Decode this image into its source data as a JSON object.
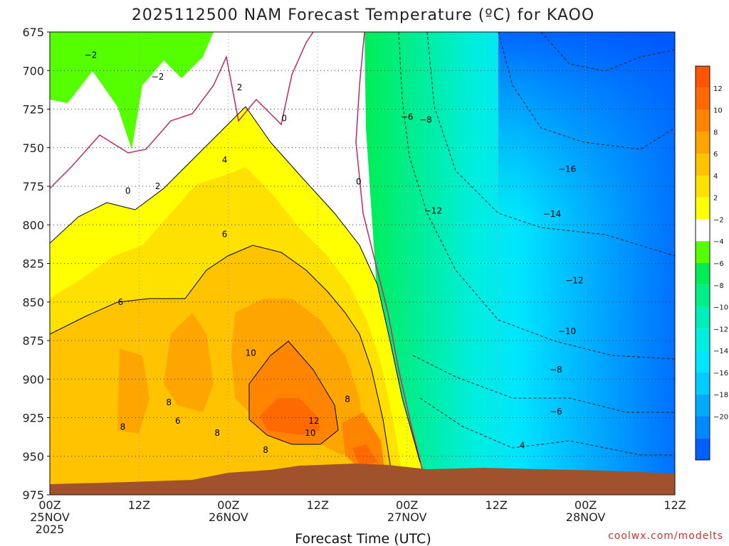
{
  "chart_data": {
    "type": "heatmap",
    "title": "2025112500 NAM Forecast Temperature (ºC) for KAOO",
    "xlabel": "Forecast Time (UTC)",
    "ylabel": "",
    "credit": "coolwx.com/modelts",
    "x_ticks": [
      {
        "hour": 0,
        "line1": "00Z",
        "line2": "25NOV",
        "line3": "2025"
      },
      {
        "hour": 12,
        "line1": "12Z"
      },
      {
        "hour": 24,
        "line1": "00Z",
        "line2": "26NOV"
      },
      {
        "hour": 36,
        "line1": "12Z"
      },
      {
        "hour": 48,
        "line1": "00Z",
        "line2": "27NOV"
      },
      {
        "hour": 60,
        "line1": "12Z"
      },
      {
        "hour": 72,
        "line1": "00Z",
        "line2": "28NOV"
      },
      {
        "hour": 84,
        "line1": "12Z"
      }
    ],
    "xlim": [
      0,
      84
    ],
    "y_ticks": [
      675,
      700,
      725,
      750,
      775,
      800,
      825,
      850,
      875,
      900,
      925,
      950,
      975
    ],
    "ylim": [
      675,
      975
    ],
    "contour_interval": 2,
    "colorbar": [
      {
        "value": "12",
        "color": "#ff6a00"
      },
      {
        "value": "10",
        "color": "#ff8500"
      },
      {
        "value": "8",
        "color": "#ffa500"
      },
      {
        "value": "6",
        "color": "#ffc300"
      },
      {
        "value": "4",
        "color": "#ffe100"
      },
      {
        "value": "2",
        "color": "#ffff00"
      },
      {
        "value": "−2",
        "color": "#ffffff"
      },
      {
        "value": "−4",
        "color": "#55ff00"
      },
      {
        "value": "−6",
        "color": "#00ee55"
      },
      {
        "value": "−8",
        "color": "#00ee88"
      },
      {
        "value": "−10",
        "color": "#00eebb"
      },
      {
        "value": "−12",
        "color": "#00eedd"
      },
      {
        "value": "−14",
        "color": "#00e5ff"
      },
      {
        "value": "−16",
        "color": "#00ccff"
      },
      {
        "value": "−18",
        "color": "#00aaff"
      },
      {
        "value": "−20",
        "color": "#0088ff"
      }
    ],
    "colorbar_extremes": {
      "top": "#ff5500",
      "bottom": "#0060ff"
    },
    "contour_labels": [
      {
        "text": "−2",
        "hour": 5.5,
        "p": 690
      },
      {
        "text": "−2",
        "hour": 14.5,
        "p": 704
      },
      {
        "text": "0",
        "hour": 10.5,
        "p": 778
      },
      {
        "text": "2",
        "hour": 14.5,
        "p": 775
      },
      {
        "text": "4",
        "hour": 23.5,
        "p": 758
      },
      {
        "text": "2",
        "hour": 25.5,
        "p": 711
      },
      {
        "text": "0",
        "hour": 31.5,
        "p": 731
      },
      {
        "text": "0",
        "hour": 41.5,
        "p": 772
      },
      {
        "text": "6",
        "hour": 9.5,
        "p": 850
      },
      {
        "text": "6",
        "hour": 23.5,
        "p": 806
      },
      {
        "text": "8",
        "hour": 16,
        "p": 915
      },
      {
        "text": "6",
        "hour": 17.2,
        "p": 927
      },
      {
        "text": "8",
        "hour": 9.8,
        "p": 931
      },
      {
        "text": "8",
        "hour": 22.5,
        "p": 935
      },
      {
        "text": "10",
        "hour": 27,
        "p": 883
      },
      {
        "text": "8",
        "hour": 40,
        "p": 913
      },
      {
        "text": "12",
        "hour": 35.5,
        "p": 927
      },
      {
        "text": "10",
        "hour": 35,
        "p": 935
      },
      {
        "text": "8",
        "hour": 29,
        "p": 946
      },
      {
        "text": "−6",
        "hour": 48,
        "p": 730
      },
      {
        "text": "−8",
        "hour": 50.5,
        "p": 732
      },
      {
        "text": "−12",
        "hour": 51.5,
        "p": 791
      },
      {
        "text": "−16",
        "hour": 69.5,
        "p": 764
      },
      {
        "text": "−14",
        "hour": 67.5,
        "p": 793
      },
      {
        "text": "−12",
        "hour": 70.5,
        "p": 836
      },
      {
        "text": "−10",
        "hour": 69.5,
        "p": 869
      },
      {
        "text": "−8",
        "hour": 68,
        "p": 894
      },
      {
        "text": "−6",
        "hour": 68,
        "p": 921
      },
      {
        "text": "4",
        "hour": 63.5,
        "p": 943
      }
    ],
    "regions": [
      {
        "name": "cold-air-mass",
        "range_c": "-4 to -20",
        "hours": [
          43,
          84
        ]
      },
      {
        "name": "warm-air-mass",
        "range_c": "2 to 14",
        "hours": [
          0,
          46
        ]
      },
      {
        "name": "terrain-below-ground",
        "color": "#a0522d"
      }
    ]
  }
}
